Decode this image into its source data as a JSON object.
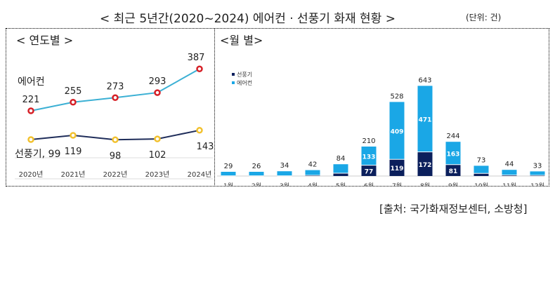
{
  "header": {
    "title": "< 최근 5년간(2020~2024) 에어컨 · 선풍기 화재 현황 >",
    "unit": "(단위: 건)"
  },
  "source": "[출처: 국가화재정보센터, 소방청]",
  "colors": {
    "aircon_line": "#3bb0d4",
    "aircon_marker": "#d62027",
    "fan_line": "#1f2d5a",
    "fan_marker": "#f2c12e",
    "bar_aircon": "#1aa7e6",
    "bar_fan": "#0b1f5c"
  },
  "chart_data": [
    {
      "type": "line",
      "title": "< 연도별 >",
      "categories": [
        "2020년",
        "2021년",
        "2022년",
        "2023년",
        "2024년"
      ],
      "series": [
        {
          "name": "에어컨",
          "values": [
            221,
            255,
            273,
            293,
            387
          ]
        },
        {
          "name": "선풍기",
          "values": [
            99,
            119,
            98,
            102,
            143
          ]
        }
      ],
      "labels": {
        "aircon": "에어컨",
        "fan_first": "선풍기, 99"
      },
      "grid": false
    },
    {
      "type": "bar",
      "stacked": true,
      "title": "<월 별>",
      "legend": [
        "선풍기",
        "에어컨"
      ],
      "legend_position": "top-left",
      "categories": [
        "1월",
        "2월",
        "3월",
        "4월",
        "5월",
        "6월",
        "7월",
        "8월",
        "9월",
        "10월",
        "11월",
        "12월"
      ],
      "totals": [
        29,
        26,
        34,
        42,
        84,
        210,
        528,
        643,
        244,
        73,
        44,
        33
      ],
      "series": [
        {
          "name": "선풍기",
          "values": [
            1,
            1,
            1,
            5,
            20,
            77,
            119,
            172,
            81,
            19,
            6,
            5
          ],
          "labeled": [
            false,
            false,
            false,
            false,
            false,
            true,
            true,
            true,
            true,
            false,
            false,
            false
          ]
        },
        {
          "name": "에어컨",
          "values": [
            28,
            25,
            33,
            37,
            64,
            133,
            409,
            471,
            163,
            54,
            38,
            28
          ],
          "labeled": [
            false,
            false,
            false,
            false,
            false,
            true,
            true,
            true,
            true,
            false,
            false,
            false
          ]
        }
      ]
    }
  ]
}
